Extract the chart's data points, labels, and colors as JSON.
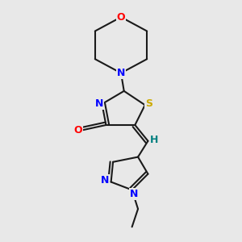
{
  "background_color": "#e8e8e8",
  "bond_color": "#1a1a1a",
  "atom_colors": {
    "O": "#ff0000",
    "N": "#0000ff",
    "S": "#ccaa00",
    "H": "#008080",
    "C": "#1a1a1a"
  },
  "figsize": [
    3.0,
    3.0
  ],
  "dpi": 100
}
